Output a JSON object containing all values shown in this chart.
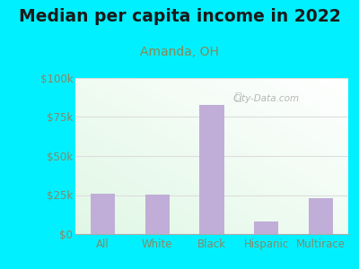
{
  "title": "Median per capita income in 2022",
  "subtitle": "Amanda, OH",
  "categories": [
    "All",
    "White",
    "Black",
    "Hispanic",
    "Multirace"
  ],
  "values": [
    26000,
    25500,
    83000,
    8000,
    23000
  ],
  "bar_color": "#c0aed8",
  "title_fontsize": 13.5,
  "subtitle_fontsize": 10,
  "subtitle_color": "#888855",
  "title_color": "#1a1a1a",
  "tick_color": "#888866",
  "background_outer": "#00f0ff",
  "ylim": [
    0,
    100000
  ],
  "yticks": [
    0,
    25000,
    50000,
    75000,
    100000
  ],
  "ytick_labels": [
    "$0",
    "$25k",
    "$50k",
    "$75k",
    "$100k"
  ],
  "watermark": "City-Data.com",
  "grid_color": "#dddddd"
}
